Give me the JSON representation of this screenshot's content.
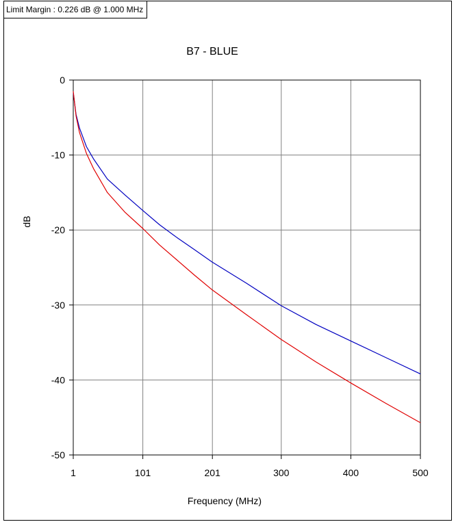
{
  "limit_margin": "Limit Margin : 0.226 dB @ 1.000 MHz",
  "colors": {
    "measured": "#0000c0",
    "limit": "#e00000",
    "grid": "#808080"
  },
  "chart_data": {
    "type": "line",
    "title": "B7 - BLUE",
    "xlabel": "Frequency (MHz)",
    "ylabel": "dB",
    "xlim": [
      1,
      500
    ],
    "ylim": [
      -50,
      0
    ],
    "xticks": [
      1,
      101,
      201,
      300,
      400,
      500
    ],
    "xtick_labels": [
      "1",
      "101",
      "201",
      "300",
      "400",
      "500"
    ],
    "yticks": [
      0,
      -10,
      -20,
      -30,
      -40,
      -50
    ],
    "ytick_labels": [
      "0",
      "-10",
      "-20",
      "-30",
      "-40",
      "-50"
    ],
    "grid": true,
    "series": [
      {
        "color": "#0000c0",
        "x": [
          1,
          5,
          10,
          20,
          30,
          50,
          75,
          101,
          125,
          150,
          175,
          201,
          250,
          300,
          350,
          400,
          450,
          500
        ],
        "y": [
          -1.7,
          -4.6,
          -6.4,
          -8.9,
          -10.5,
          -13.2,
          -15.3,
          -17.4,
          -19.3,
          -21.0,
          -22.6,
          -24.3,
          -27.1,
          -30.1,
          -32.6,
          -34.8,
          -37.0,
          -39.2
        ]
      },
      {
        "color": "#e00000",
        "x": [
          1,
          5,
          10,
          20,
          30,
          50,
          75,
          101,
          125,
          150,
          175,
          201,
          250,
          300,
          350,
          400,
          450,
          500
        ],
        "y": [
          -1.5,
          -4.8,
          -7.0,
          -9.8,
          -11.8,
          -15.0,
          -17.6,
          -19.8,
          -22.0,
          -24.0,
          -26.0,
          -28.0,
          -31.3,
          -34.6,
          -37.6,
          -40.4,
          -43.1,
          -45.7
        ]
      }
    ]
  }
}
